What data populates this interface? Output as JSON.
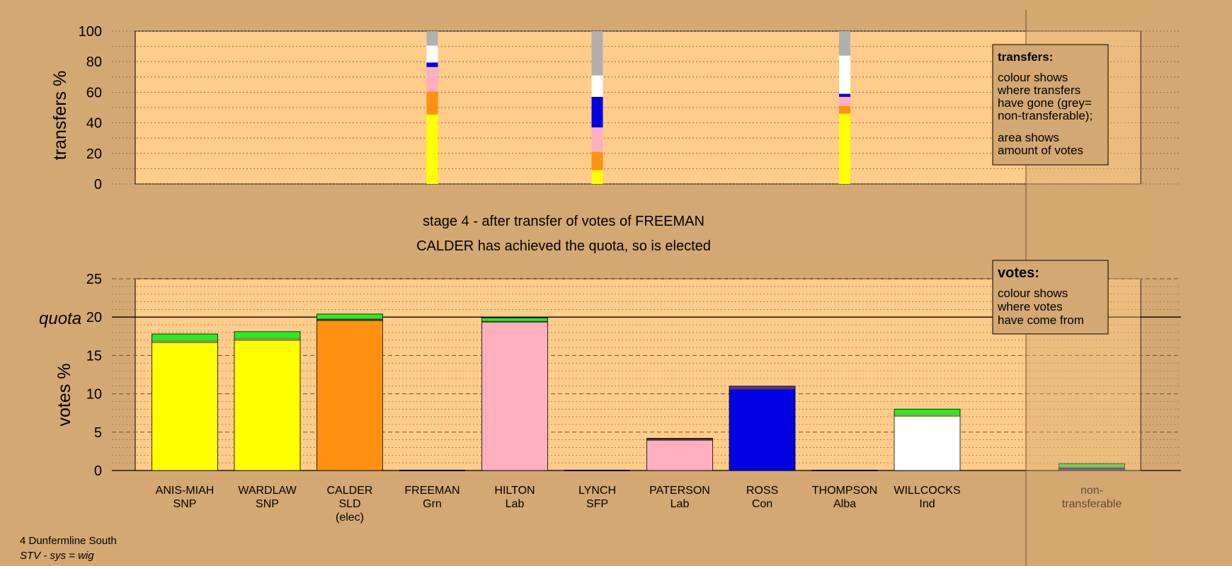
{
  "colors": {
    "background": "#d4a872",
    "plot_area": "#ffcc8a",
    "divider_shade": "#d4a872"
  },
  "stage_text": {
    "line1": "stage 4 - after transfer of votes of FREEMAN",
    "line2": "CALDER has achieved the quota, so is elected"
  },
  "transfers_legend": {
    "title": "transfers:",
    "lines1": [
      "colour shows",
      "where transfers",
      "have gone (grey=",
      "non-transferable);"
    ],
    "lines2": [
      "area shows",
      "amount of votes"
    ]
  },
  "votes_legend": {
    "title": "votes:",
    "lines": [
      "colour shows",
      "where votes",
      "have come from"
    ]
  },
  "footer": {
    "constituency": "4 Dunfermline South",
    "system": "STV - sys = wig"
  },
  "chart_data": [
    {
      "type": "bar",
      "name": "transfers",
      "ylabel": "transfers %",
      "ylim": [
        0,
        100
      ],
      "yticks": [
        "0",
        "20",
        "40",
        "60",
        "80",
        "100"
      ],
      "grid": true,
      "bars": [
        {
          "position_candidate": "FREEMAN",
          "segments": [
            {
              "party": "SNP",
              "color": "#ffff00",
              "value": 45.5
            },
            {
              "party": "SLD",
              "color": "#ff9010",
              "value": 15
            },
            {
              "party": "Lab",
              "color": "#ffb0c0",
              "value": 11
            },
            {
              "party": "Lab2",
              "color": "#ffb0c0",
              "value": 5
            },
            {
              "party": "Con",
              "color": "#0000e0",
              "value": 3
            },
            {
              "party": "Ind",
              "color": "#ffffff",
              "value": 11
            },
            {
              "party": "non-transferable",
              "color": "#b0b0b0",
              "value": 9.5
            }
          ]
        },
        {
          "position_candidate": "LYNCH",
          "segments": [
            {
              "party": "SNP",
              "color": "#ffff00",
              "value": 9
            },
            {
              "party": "SLD",
              "color": "#ff9010",
              "value": 12
            },
            {
              "party": "Lab",
              "color": "#ffb0c0",
              "value": 16
            },
            {
              "party": "Con",
              "color": "#0000e0",
              "value": 20
            },
            {
              "party": "Ind",
              "color": "#ffffff",
              "value": 14
            },
            {
              "party": "non-transferable",
              "color": "#b0b0b0",
              "value": 29
            }
          ]
        },
        {
          "position_candidate": "THOMPSON",
          "segments": [
            {
              "party": "SNP",
              "color": "#ffff00",
              "value": 46
            },
            {
              "party": "SLD",
              "color": "#ff9010",
              "value": 5
            },
            {
              "party": "Lab",
              "color": "#ffb0c0",
              "value": 6
            },
            {
              "party": "Con",
              "color": "#0000e0",
              "value": 2
            },
            {
              "party": "Ind",
              "color": "#ffffff",
              "value": 25
            },
            {
              "party": "non-transferable",
              "color": "#b0b0b0",
              "value": 16
            }
          ]
        }
      ]
    },
    {
      "type": "bar",
      "name": "votes",
      "ylabel": "votes %",
      "ylim": [
        0,
        25
      ],
      "yticks": [
        "0",
        "5",
        "10",
        "15",
        "20",
        "25"
      ],
      "quota": 20,
      "quota_label": "quota",
      "grid": true,
      "categories": [
        {
          "name": "ANIS-MIAH",
          "party": "SNP",
          "note": ""
        },
        {
          "name": "WARDLAW",
          "party": "SNP",
          "note": ""
        },
        {
          "name": "CALDER",
          "party": "SLD",
          "note": "(elec)"
        },
        {
          "name": "FREEMAN",
          "party": "Grn",
          "note": ""
        },
        {
          "name": "HILTON",
          "party": "Lab",
          "note": ""
        },
        {
          "name": "LYNCH",
          "party": "SFP",
          "note": ""
        },
        {
          "name": "PATERSON",
          "party": "Lab",
          "note": ""
        },
        {
          "name": "ROSS",
          "party": "Con",
          "note": ""
        },
        {
          "name": "THOMPSON",
          "party": "Alba",
          "note": ""
        },
        {
          "name": "WILLCOCKS",
          "party": "Ind",
          "note": ""
        },
        {
          "name": "non-",
          "party": "transferable",
          "note": ""
        }
      ],
      "stacks": [
        [
          {
            "color": "#ffff00",
            "value": 16.6
          },
          {
            "color": "#909040",
            "value": 0.4
          },
          {
            "color": "#22ee22",
            "value": 0.8
          }
        ],
        [
          {
            "color": "#ffff00",
            "value": 16.9
          },
          {
            "color": "#909040",
            "value": 0.4
          },
          {
            "color": "#22ee22",
            "value": 0.8
          }
        ],
        [
          {
            "color": "#ff9010",
            "value": 19.5
          },
          {
            "color": "#403020",
            "value": 0.3
          },
          {
            "color": "#22ee22",
            "value": 0.6
          }
        ],
        [],
        [
          {
            "color": "#ffb0c0",
            "value": 19.3
          },
          {
            "color": "#403020",
            "value": 0.2
          },
          {
            "color": "#22ee22",
            "value": 0.4
          }
        ],
        [],
        [
          {
            "color": "#ffb0c0",
            "value": 3.9
          },
          {
            "color": "#403020",
            "value": 0.3
          }
        ],
        [
          {
            "color": "#0000e0",
            "value": 10.6
          },
          {
            "color": "#603070",
            "value": 0.4
          }
        ],
        [],
        [
          {
            "color": "#ffffff",
            "value": 7.0
          },
          {
            "color": "#909040",
            "value": 0.3
          },
          {
            "color": "#22ee22",
            "value": 0.7
          }
        ],
        [
          {
            "color": "#603070",
            "value": 0.2
          },
          {
            "color": "#0000e0",
            "value": 0.2
          },
          {
            "color": "#22ee22",
            "value": 0.5
          }
        ]
      ]
    }
  ]
}
